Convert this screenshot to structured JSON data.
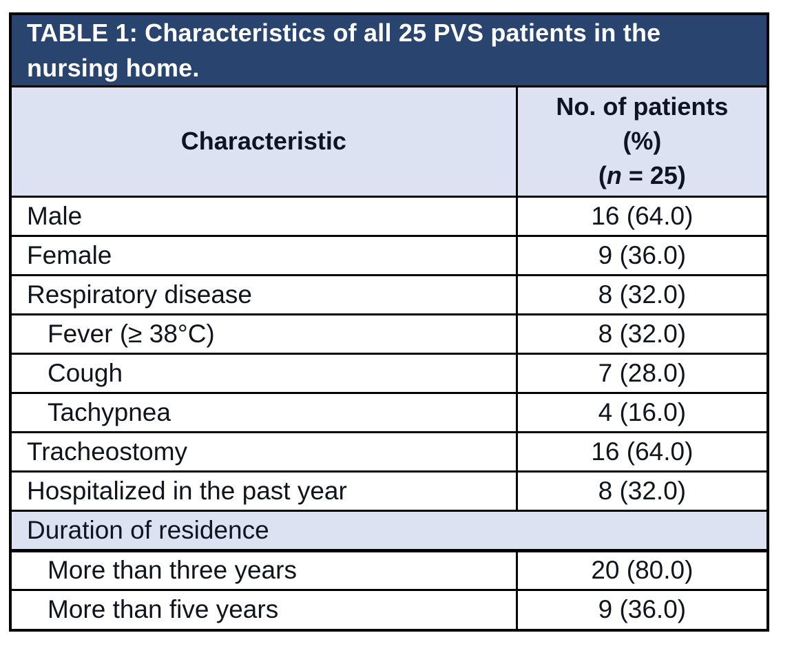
{
  "title": {
    "line1": "TABLE 1: Characteristics of all 25 PVS patients in the",
    "line2": "nursing home."
  },
  "header": {
    "col1": "Characteristic",
    "col2_line1": "No. of patients",
    "col2_line2": "(%)",
    "col2_line3_pre": "(",
    "col2_line3_n": "n",
    "col2_line3_post": " = 25)"
  },
  "rows": [
    {
      "label": "Male",
      "value": "16 (64.0)",
      "indent": false
    },
    {
      "label": "Female",
      "value": "9 (36.0)",
      "indent": false
    },
    {
      "label": "Respiratory disease",
      "value": "8 (32.0)",
      "indent": false
    },
    {
      "label": "Fever (≥ 38°C)",
      "value": "8 (32.0)",
      "indent": true
    },
    {
      "label": "Cough",
      "value": "7 (28.0)",
      "indent": true
    },
    {
      "label": "Tachypnea",
      "value": "4 (16.0)",
      "indent": true
    },
    {
      "label": "Tracheostomy",
      "value": "16 (64.0)",
      "indent": false
    },
    {
      "label": "Hospitalized in the past year",
      "value": "8 (32.0)",
      "indent": false
    },
    {
      "label": "Duration of residence",
      "value": "",
      "section": true
    },
    {
      "label": "More than three years",
      "value": "20 (80.0)",
      "indent": true
    },
    {
      "label": "More than five years",
      "value": "9 (36.0)",
      "indent": true
    }
  ],
  "colors": {
    "title_bg": "#2A4470",
    "header_bg": "#DCE2F1",
    "section_bg": "#DCE2F1",
    "border": "#000000",
    "title_text": "#FFFFFF",
    "body_text": "#10141C"
  }
}
